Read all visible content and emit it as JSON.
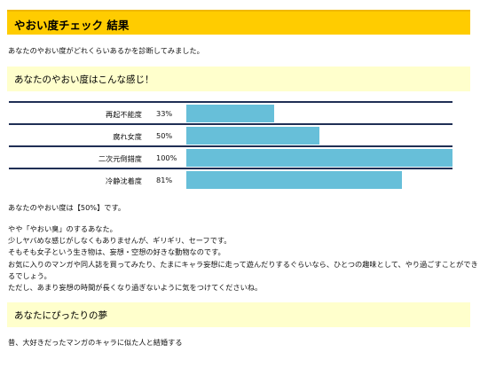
{
  "title": "やおい度チェック 結果",
  "intro": "あなたのやおい度がどれくらいあるかを診断してみました。",
  "section1": "あなたのやおい度はこんな感じ！",
  "chart_data": {
    "type": "bar",
    "orientation": "horizontal",
    "categories": [
      "再起不能度",
      "腐れ女度",
      "二次元倒錯度",
      "冷静沈着度"
    ],
    "values": [
      33,
      50,
      100,
      81
    ],
    "value_labels": [
      "33%",
      "50%",
      "100%",
      "81%"
    ],
    "xlim": [
      0,
      100
    ],
    "bar_color": "#67bfd9"
  },
  "result_line": "あなたのやおい度は【50%】です。",
  "description": [
    "やや「やおい臭」のするあなた。",
    "少しヤバめな感じがしなくもありませんが、ギリギリ、セーフです。",
    "そもそも女子という生き物は、妄想・空想の好きな動物なのです。",
    "お気に入りのマンガや同人誌を買ってみたり、たまにキャラ妄想に走って遊んだりするぐらいなら、ひとつの趣味として、やり過ごすことができ",
    "るでしょう。",
    "ただし、あまり妄想の時間が長くなり過ぎないように気をつけてくださいね。"
  ],
  "section2": "あなたにぴったりの夢",
  "dream": "昔、大好きだったマンガのキャラに似た人と結婚する",
  "colors": {
    "title_bar": "#ffcc00",
    "section_bg": "#ffffcc",
    "bar": "#67bfd9",
    "rule": "#1f2f55"
  }
}
